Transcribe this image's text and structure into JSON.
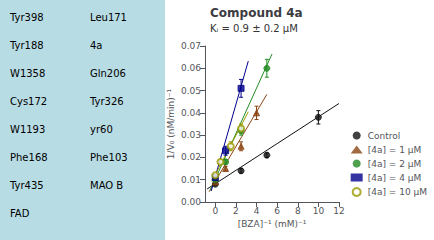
{
  "chart_data": {
    "type": "scatter",
    "title": "Compound 4a",
    "subtitle": "Kᵢ = 0.9 ± 0.2 μM",
    "xlabel": "[BZA]⁻¹ (mM)⁻¹",
    "ylabel": "1/V₀ (nM/min)⁻¹",
    "xlim": [
      -1,
      12
    ],
    "ylim": [
      0,
      0.07
    ],
    "xticks": [
      0,
      2,
      4,
      6,
      8,
      10,
      12
    ],
    "yticks": [
      {
        "value": 0.0,
        "label": "0.00"
      },
      {
        "value": 0.01,
        "label": "0.01"
      },
      {
        "value": 0.02,
        "label": "0.02"
      },
      {
        "value": 0.03,
        "label": "0.03"
      },
      {
        "value": 0.04,
        "label": "0.04"
      },
      {
        "value": 0.05,
        "label": "0.05"
      },
      {
        "value": 0.06,
        "label": "0.06"
      },
      {
        "value": 0.07,
        "label": "0.07"
      }
    ],
    "grid": false,
    "legend": "lower right",
    "annotations": [
      "Tyr398",
      "Tyr188",
      "W1358",
      "Cys172",
      "W1193",
      "Phe168",
      "Tyr435",
      "FAD",
      "Leu171",
      "4a",
      "Gln206",
      "Tyr326",
      "yr60",
      "Phe103",
      "MAO B"
    ],
    "series": [
      {
        "name": "Control",
        "color": "#111111",
        "marker": "circle",
        "x": [
          0,
          2.5,
          5.0,
          10.0
        ],
        "y": [
          0.008,
          0.014,
          0.021,
          0.038
        ],
        "yerr": [
          0.0004,
          0.001,
          0.001,
          0.003
        ],
        "fit_x": [
          -0.8,
          12
        ],
        "fit_y": [
          0.0058,
          0.0442
        ]
      },
      {
        "name": "[4a] = 1 μM",
        "color": "#8B4513",
        "marker": "triangle",
        "x": [
          0,
          1.0,
          2.5,
          4.0
        ],
        "y": [
          0.009,
          0.015,
          0.025,
          0.04
        ],
        "yerr": [
          0.0004,
          0.001,
          0.002,
          0.003
        ],
        "fit_x": [
          -0.6,
          5.0
        ],
        "fit_y": [
          0.00462,
          0.0483
        ]
      },
      {
        "name": "[4a] = 2 μM",
        "color": "#228B22",
        "marker": "circle",
        "x": [
          0,
          1.0,
          2.5,
          5.0
        ],
        "y": [
          0.01,
          0.018,
          0.032,
          0.06
        ],
        "yerr": [
          0.0004,
          0.001,
          0.002,
          0.004
        ],
        "fit_x": [
          -0.5,
          5.5
        ],
        "fit_y": [
          0.0052,
          0.0664
        ]
      },
      {
        "name": "[4a] = 4 μM",
        "color": "#00008B",
        "marker": "square",
        "x": [
          0,
          1.0,
          2.5
        ],
        "y": [
          0.011,
          0.023,
          0.051
        ],
        "yerr": [
          0.0005,
          0.002,
          0.004
        ],
        "fit_x": [
          -0.4,
          3.2
        ],
        "fit_y": [
          0.00492,
          0.06324
        ]
      },
      {
        "name": "[4a] = 10 μM",
        "color": "#999900",
        "marker": "open circle",
        "x": [
          0,
          0.5,
          1.5,
          2.5
        ],
        "y": [
          0.012,
          0.018,
          0.025,
          0.033
        ],
        "yerr": [
          0.0005,
          0.001,
          0.002,
          0.002
        ],
        "fit_x": [
          -0.35,
          3.2
        ],
        "fit_y": [
          0.00922,
          0.04046
        ]
      }
    ]
  }
}
